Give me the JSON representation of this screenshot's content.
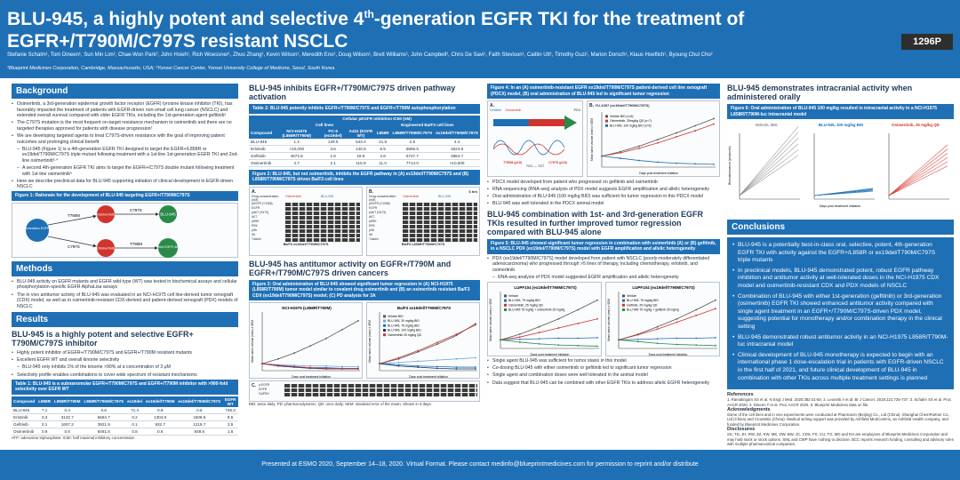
{
  "header": {
    "title_line1_a": "BLU-945, a highly potent and selective 4",
    "title_sup": "th",
    "title_line1_b": "-generation EGFR TKI for the treatment of",
    "title_line2": "EGFR+/T790M/C797S resistant NSCLC",
    "authors": "Stefanie Schalm¹, Tom Dineen¹, Sun Min Lim², Chae-Won Park², John Hsieh¹, Rich Woessner¹, Zhuo Zhang¹, Kevin Wilson¹, Meredith Eno¹, Doug Wilson¹, Brett Williams¹, John Campbell¹, Chris De Savi¹, Faith Stevison¹, Caitlin Utt¹, Timothy Guzi¹, Marion Dorsch¹, Klaus Hoeflich¹, Byoung Chul Cho²",
    "affiliations": "¹Blueprint Medicines Corporation, Cambridge, Massachusetts, USA; ²Yonsei Cancer Center, Yonsei University College of Medicine, Seoul, South Korea",
    "badge": "1296P"
  },
  "col1": {
    "background_title": "Background",
    "background_items": [
      "Osimertinib, a 3rd-generation epidermal growth factor receptor (EGFR) tyrosine kinase inhibitor (TKI), has favorably impacted the treatment of patients with EGFR-driven non-small cell lung cancer (NSCLC) and extended overall survival compared with older EGFR TKIs, including the 1st-generation agent gefitinib¹",
      "The C797S mutation is the most frequent on-target resistance mechanism to osimertinib and there are no targeted therapies approved for patients with disease progression²",
      "We are developing targeted agents to treat C797S-driven resistance with the goal of improving patient outcomes and prolonging clinical benefit"
    ],
    "background_sub": [
      "BLU-945 (Figure 1) is a 4th-generation EGFR TKI designed to target the EGFR+/L858R or ex19del/T790M/C797S triple mutant following treatment with a 1st-line 1st-generation EGFR TKI and 2nd-line osimertinib³·⁴",
      "A second 4th-generation EGFR TKI aims to target the EGFR+/C797S double mutant following treatment with 1st-line osimertinib⁵"
    ],
    "background_last": "Here we describe preclinical data for BLU-945 supporting initiation of clinical development in EGFR-driven NSCLC",
    "fig1_caption": "Figure 1: Rationale for the development of BLU-945 targeting EGFR+/T790M/C797S",
    "fig1": {
      "node_first": "1st-generation EGFR TKI",
      "node_osimertinib": "Osimertinib",
      "node_osimertinib2": "Osimertinib",
      "node_blueprint": "Blueprint EGFR 4th gen",
      "node_blu945": "BLU-945",
      "edge_t790m": "T790M",
      "edge_c797s": "C797S",
      "edge_c797s2": "C797S",
      "edge_t790m2": "T790M"
    },
    "methods_title": "Methods",
    "methods_items": [
      "BLU-945 activity on EGFR mutants and EGFR wild-type (WT) was tested in biochemical assays and cellular phosphorylation-specific EGFR AlphaLisa assays",
      "The in vivo antitumor activity of BLU-945 was evaluated in an NCI-H1975 cell line-derived tumor xenograft (CDX) model, as well as in osimertinib-resistant CDX-derived and patient-derived xenograft (PDX) models of NSCLC"
    ],
    "results_title": "Results",
    "results_subtitle": "BLU-945 is a highly potent and selective EGFR+ T790M/C797S inhibitor",
    "results_items": [
      "Highly potent inhibitor of EGFR+/T790M/C797S and EGFR+/T790M resistant mutants",
      "Excellent EGFR WT and overall kinome selectivity",
      "BLU-945 only inhibits 1% of the kinome >90% at a concentration of 3 μM",
      "Selectivity profile enables combinations to cover wide spectrum of resistant mechanisms"
    ],
    "table1_caption": "Table 1: BLU-945 is a subnanomolar EGFR+/T790M/C797S and EGFR+/T790M inhibitor with >900-fold selectivity over EGFR WT",
    "table1_head": [
      "Compound",
      "L858R",
      "L858R/T790M",
      "L858R/T790M/C797S",
      "ex19del",
      "ex19del/T790M",
      "ex19del/T790M/C797S",
      "EGFR WT"
    ],
    "table1_rows": [
      [
        "BLU-945",
        "7.1",
        "0.4",
        "0.6",
        "71.4",
        "0.8",
        "0.6",
        "736.3"
      ],
      [
        "Erlotinib",
        "0.3",
        "3132.7",
        "5684.7",
        "0.2",
        "1304.0",
        "1509.6",
        "9.5"
      ],
      [
        "Gefitinib",
        "0.1",
        "1607.2",
        "3921.9",
        "0.1",
        "932.7",
        "1219.7",
        "3.5"
      ],
      [
        "Osimertinib",
        "0.9",
        "0.6",
        "8461.6",
        "0.8",
        "0.6",
        "849.6",
        "1.6"
      ]
    ],
    "table1_note": "ATP: adenosine triphosphate; IC50: half maximal inhibitory concentration"
  },
  "col2": {
    "s1_title": "BLU-945 inhibits EGFR+/T790M/C797S driven pathway activation",
    "table2_caption": "Table 2: BLU-945 potently inhibits EGFR+/T790M/C797S and EGFR+/T790M autophosphorylation",
    "table2_top": "Cellular pEGFR inhibition IC50 (nM)",
    "table2_group1": "Cell lines",
    "table2_group2": "Engineered Ba/F3 cell lines",
    "table2_head": [
      "Compound",
      "NCI-H1975 (L858R/T790M)",
      "PC-9 (ex19del)",
      "A431 (EGFR WT)",
      "L858R",
      "L858R/T790M/C797S",
      "ex19del/T790M/C797S"
    ],
    "table2_rows": [
      [
        "BLU-945",
        "1.2",
        "129.5",
        "544.4",
        "21.5",
        "2.5",
        "4.4"
      ],
      [
        "Erlotinib",
        ">10,000",
        "3.6",
        "140.6",
        "8.9",
        "6855.5",
        "4524.8"
      ],
      [
        "Gefitinib",
        "4672.8",
        "1.8",
        "18.8",
        "4.8",
        "6727.7",
        "4864.7"
      ],
      [
        "Osimertinib",
        "4.7",
        "2.1",
        "115.9",
        "11.0",
        "7714.0",
        ">10,000"
      ]
    ],
    "fig2_caption": "Figure 2: BLU-945, but not osimertinib, inhibits the EGFR pathway in (A) ex19del/T790M/C797S and (B) L858R/T790M/C797S driven Ba/F3 cell lines",
    "fig2_a": "A.",
    "fig2_b": "B.",
    "fig2_drug_label": "Drug concentration (nM)",
    "fig2_hours": "6 hrs",
    "fig2_bands": [
      "pEGFR (Y1068)",
      "EGFR",
      "pAKT (S473)",
      "AKT",
      "pERK",
      "ERK",
      "pS6",
      "S6",
      "Tubulin"
    ],
    "fig2_a_foot": "Ba/F3 ex19del/T790M/C797S",
    "fig2_b_foot": "Ba/F3 L858R/T790M/C797S",
    "fig2_osi": "Osimertinib",
    "fig2_blu": "BLU-945",
    "s2_title": "BLU-945 has antitumor activity on EGFR+/T790M and EGFR+/T790M/C797S driven cancers",
    "fig3_caption": "Figure 3: Oral administration of BLU-945 showed significant tumor regression in (A) NCI-H1975 (L858R/T790M) tumor model similar to covalent drug osimertinib and (B) an osimertinib resistant Ba/F3 CDX (ex19del/T790M/C797S) model; (C) PD analysis for 3A",
    "fig3_a_title": "NCI-H1975 (L858R/T790M)",
    "fig3_b_title": "Ba/F3 ex19del/T790M/C797S",
    "fig3_xlabel": "Days post treatment initiation",
    "fig3_ylabel": "Mean tumor volume (mm³) ± SEM",
    "fig3_legend": [
      "Vehicle BID",
      "BLU-945, 30 mg/kg BID",
      "BLU-945, 75 mg/kg BID",
      "BLU-945, 100 mg/kg BID",
      "Osimertinib 25 mg/kg QD"
    ],
    "fig3_c_label": "C.",
    "fig3_c_rows": [
      "p-EGFR",
      "EGFR",
      "GAPDH"
    ],
    "fig3_c_note": "BID: twice daily; PD: pharmacodynamic; QD: once daily; SEM: standard error of the mean. Shown in 3 days."
  },
  "col3": {
    "fig4_caption": "Figure 4: In an (A) osimertinib-resistant EGFR ex19del/T790M/C797S patient-derived cell line xenograft (PDCX) model, (B) oral administration of BLU-945 led to significant tumor regression",
    "fig4_a": "A.",
    "fig4_b": "B.",
    "fig4_b_title": "YU-1097 (ex19del/T790M/C797S)",
    "fig4_a_legend": [
      "Gefitinib",
      "Osimertinib"
    ],
    "fig4_a_bottom": [
      "T790M (p19)",
      "C797S (p19)"
    ],
    "fig4_a_pdx": "PDX",
    "fig4_a_tgc": "TGC — TGT",
    "fig4_legend": [
      "Vehicle BID (n=6)",
      "Osimertinib, 25mg/kg QD (n=7)",
      "BLU-945, 100 mg/kg BID (n=6)"
    ],
    "fig4_xlabel": "Days post treatment initiation",
    "fig4_ylabel": "Mean tumor volume (mm³) ± SEM",
    "fig4_items": [
      "PDCX model developed from patient who progressed on gefitinib and osimertinib",
      "RNA sequencing (RNA-seq) analysis of PDX model suggests EGFR amplification and allelic heterogeneity",
      "Oral administration of BLU-945 (100 mg/kg BID) was sufficient for tumor regression in this PDCX model",
      "BLU-945 was well tolerated in the PDCX animal model"
    ],
    "s2_title": "BLU-945 combination with 1st- and 3rd-generation EGFR TKIs resulted in further improved tumor regression compared with BLU-945 alone",
    "fig5_caption": "Figure 5: BLU-945 showed significant tumor regression in combination with osimertinib (A) or (B) gefitinib, in a NSCLC PDX (ex19del/T790M/C797S) model with EGFR amplification and allelic heterogeneity",
    "fig5_items": [
      "PDX (ex19del/T790M/C797S) model developed from patient with NSCLC (poorly-moderately differentiated adenocarcinoma) who progressed through >5 lines of therapy, including chemotherapy, erlotinib, and osimertinib"
    ],
    "fig5_sub": "RNA-seq analysis of PDX model suggested EGFR amplification and allelic heterogeneity",
    "fig5_a": "A.",
    "fig5_b": "B.",
    "fig5_a_title": "LUPF104 (ex19del/T790M/C797S)",
    "fig5_a_sub": "BLU-945 + osimertinib",
    "fig5_b_title": "LUPF104 (ex19del/T790M/C797S)",
    "fig5_b_sub": "BLU-945 + gefitinib",
    "fig5_xlabel": "Days post treatment initiation",
    "fig5_ylabel": "Mean tumor volume (mm³) ± SEM",
    "fig5_a_legend": [
      "Vehicle",
      "BLU-945, 75 mg/kg BID",
      "Osimertinib, 25 mg/kg QD",
      "BLU-945 75 mg/kg + osimertinib 25 mg/kg"
    ],
    "fig5_b_legend": [
      "Vehicle",
      "BLU-945, 75 mg/kg BID",
      "Gefitinib, 25 mg/kg QD",
      "BLU-945 75 mg/kg + gefitinib 25 mg/kg"
    ],
    "bottom_items": [
      "Single agent BLU-945 was sufficient for tumor stasis in this model",
      "Co-dosing BLU-945 with either osimertinib or gefitinib led to significant tumor regression",
      "Single agent and combination doses were well tolerated in the animal model",
      "Data suggest that BLU-945 can be combined with other EGFR TKIs to address allelic EGFR heterogeneity"
    ]
  },
  "col4": {
    "s1_title": "BLU-945 demonstrates intracranial activity when administered orally",
    "fig6_caption": "Figure 6: Oral administration of BLU-945 100 mg/kg resulted in intracranial activity in a NCI-H1975 L858R/T790M-luc intracranial model",
    "fig6_panels": [
      {
        "title": "Vehicle, BID",
        "color": "#888888"
      },
      {
        "title": "BLU-945, 100 mg/kg BID",
        "color": "#1f6fb5"
      },
      {
        "title": "Osimertinib, 25 mg/kg QD",
        "color": "#d0342c"
      }
    ],
    "fig6_xlabel": "Days post treatment initiation",
    "fig6_ylabel": "Bioluminescence (photons/s)",
    "conclusions_title": "Conclusions",
    "conclusions": [
      "BLU-945 is a potentially best-in-class oral, selective, potent, 4th-generation EGFR TKI with activity against the EGFR+/L858R or ex19del/T790M/C797S triple mutants",
      "In preclinical models, BLU-945 demonstrated potent, robust EGFR pathway inhibition and antitumor activity at well-tolerated doses in the NCI-H1975 CDX model and osimertinib-resistant CDX and PDX models of NSCLC",
      "Combination of BLU-945 with either 1st-generation (gefitinib) or 3rd-generation (osimertinib) EGFR TKI showed enhanced antitumor activity compared with single agent treatment in an EGFR+/T790M/C797S-driven PDX model, suggesting potential for monotherapy and/or combination therapy in the clinical setting",
      "BLU-945 demonstrated robust antitumor activity in an NCI-H1975 L858R/T790M-luc intracranial model",
      "Clinical development of BLU-945 monotherapy is expected to begin with an international phase 1 dose-escalation trial in patients with EGFR-driven NSCLC in the first half of 2021, and future clinical development of BLU-945 in combination with other TKIs across multiple treatment settings is planned"
    ],
    "refs_title": "References",
    "refs_text": "1. Ramalingam SS et al. N Engl J Med. 2020;382:41-50. 2. Leonetti A et al. Br J Cancer. 2019;121:725-737. 3. Schalm SS et al. Proc AACR 2020. 4. Dineen T et al. Proc AACR 2020. 5. Blueprint Medicines data on file.",
    "ack_title": "Acknowledgments",
    "ack_text": "Some of the cell lines and in vivo experiments were conducted at Pharmaron (Beijing) Co., Ltd (China), Shanghai ChemPartner Co., Ltd (China) and CrownBio (China). Medical writing support was provided by Ashfield MedComms, an Ashfield Health company, and funded by Blueprint Medicines Corporation.",
    "disc_title": "Disclosures",
    "disc_text": "SS, TD, JH, RW, ZZ, KW, ME, DW, BW, JC, CDS, FS, CU, TG, MD and KH are employees of Blueprint Medicines Corporation and may hold stock or stock options. SML and CWP have nothing to disclose. BCC reports research funding, consulting and advisory roles with multiple pharmaceutical companies."
  },
  "footer": {
    "text": "Presented at ESMO 2020, September 14–18, 2020. Virtual Format. Please contact medinfo@blueprintmedicines.com for permission to reprint and/or distribute"
  }
}
